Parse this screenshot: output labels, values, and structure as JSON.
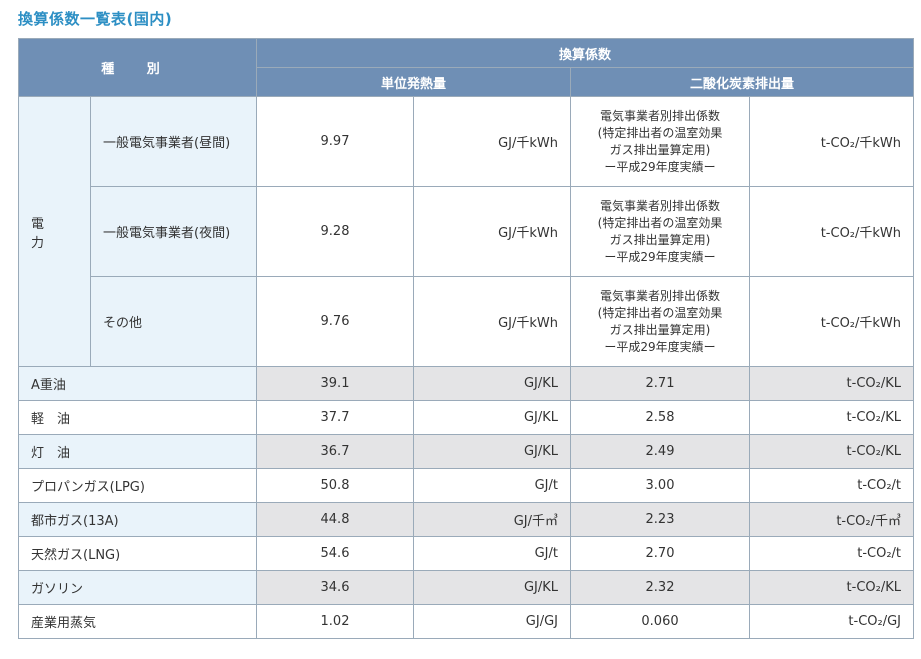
{
  "title": "換算係数一覧表(国内)",
  "header": {
    "kind": "種 別",
    "factor": "換算係数",
    "heat": "単位発熱量",
    "co2": "二酸化炭素排出量"
  },
  "electricity": {
    "category": "電 力",
    "rows": [
      {
        "sub": "一般電気事業者(昼間)",
        "heat_value": "9.97",
        "heat_unit": "GJ/千kWh",
        "note": [
          "電気事業者別排出係数",
          "(特定排出者の温室効果",
          "ガス排出量算定用)",
          "ー平成29年度実績ー"
        ],
        "co2_unit": "t-CO₂/千kWh"
      },
      {
        "sub": "一般電気事業者(夜間)",
        "heat_value": "9.28",
        "heat_unit": "GJ/千kWh",
        "note": [
          "電気事業者別排出係数",
          "(特定排出者の温室効果",
          "ガス排出量算定用)",
          "ー平成29年度実績ー"
        ],
        "co2_unit": "t-CO₂/千kWh"
      },
      {
        "sub": "その他",
        "heat_value": "9.76",
        "heat_unit": "GJ/千kWh",
        "note": [
          "電気事業者別排出係数",
          "(特定排出者の温室効果",
          "ガス排出量算定用)",
          "ー平成29年度実績ー"
        ],
        "co2_unit": "t-CO₂/千kWh"
      }
    ]
  },
  "fuels": [
    {
      "name": "A重油",
      "heat_value": "39.1",
      "heat_unit": "GJ/KL",
      "co2_value": "2.71",
      "co2_unit": "t-CO₂/KL"
    },
    {
      "name": "軽　油",
      "heat_value": "37.7",
      "heat_unit": "GJ/KL",
      "co2_value": "2.58",
      "co2_unit": "t-CO₂/KL"
    },
    {
      "name": "灯　油",
      "heat_value": "36.7",
      "heat_unit": "GJ/KL",
      "co2_value": "2.49",
      "co2_unit": "t-CO₂/KL"
    },
    {
      "name": "プロパンガス(LPG)",
      "heat_value": "50.8",
      "heat_unit": "GJ/t",
      "co2_value": "3.00",
      "co2_unit": "t-CO₂/t"
    },
    {
      "name": "都市ガス(13A)",
      "heat_value": "44.8",
      "heat_unit": "GJ/千㎥",
      "co2_value": "2.23",
      "co2_unit": "t-CO₂/千㎥"
    },
    {
      "name": "天然ガス(LNG)",
      "heat_value": "54.6",
      "heat_unit": "GJ/t",
      "co2_value": "2.70",
      "co2_unit": "t-CO₂/t"
    },
    {
      "name": "ガソリン",
      "heat_value": "34.6",
      "heat_unit": "GJ/KL",
      "co2_value": "2.32",
      "co2_unit": "t-CO₂/KL"
    },
    {
      "name": "産業用蒸気",
      "heat_value": "1.02",
      "heat_unit": "GJ/GJ",
      "co2_value": "0.060",
      "co2_unit": "t-CO₂/GJ"
    }
  ]
}
